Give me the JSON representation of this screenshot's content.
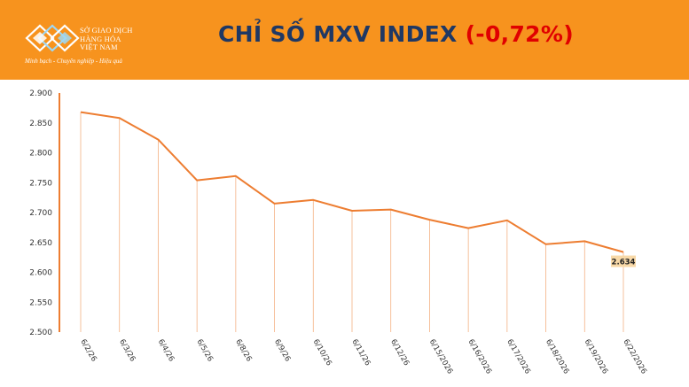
{
  "header": {
    "logo_lines": [
      "SỞ GIAO DỊCH",
      "HÀNG HÓA",
      "VIỆT NAM"
    ],
    "slogan": "Minh bạch - Chuyên nghiệp - Hiệu quả",
    "title_main": "CHỈ SỐ MXV INDEX ",
    "title_change": "(-0,72%)",
    "background_color": "#f7931e",
    "title_color": "#1f3864",
    "change_color": "#e00000"
  },
  "chart_data": {
    "type": "line",
    "categories": [
      "6/2/26",
      "6/3/26",
      "6/4/26",
      "6/5/26",
      "6/8/26",
      "6/9/26",
      "6/10/26",
      "6/11/26",
      "6/12/26",
      "6/15/2026",
      "6/16/2026",
      "6/17/2026",
      "6/18/2026",
      "6/19/2026",
      "6/22/2026"
    ],
    "values": [
      2868,
      2858,
      2822,
      2754,
      2761,
      2715,
      2721,
      2703,
      2705,
      2688,
      2674,
      2687,
      2647,
      2652,
      2634
    ],
    "yticks": [
      "2.500",
      "2.550",
      "2.600",
      "2.650",
      "2.700",
      "2.750",
      "2.800",
      "2.850",
      "2.900"
    ],
    "ylim": [
      2500,
      2900
    ],
    "last_value_label": "2.634",
    "line_color": "#ed7d31",
    "label_bg_color": "#f8d9a8",
    "grid": false,
    "drop_lines": true
  }
}
